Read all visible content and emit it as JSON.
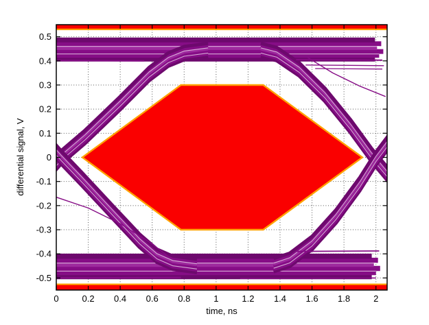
{
  "figure": {
    "background": "#ffffff"
  },
  "chart_data": {
    "type": "line",
    "subtype": "eye-diagram-with-mask",
    "title": "",
    "xlabel": "time, ns",
    "ylabel": "differential signal, V",
    "xlim": [
      0,
      2.07
    ],
    "ylim": [
      -0.55,
      0.55
    ],
    "xticks": [
      0,
      0.2,
      0.4,
      0.6,
      0.8,
      1,
      1.2,
      1.4,
      1.6,
      1.8,
      2
    ],
    "xtick_labels": [
      "0",
      "0.2",
      "0.4",
      "0.6",
      "0.8",
      "1",
      "1.2",
      "1.4",
      "1.6",
      "1.8",
      "2"
    ],
    "yticks": [
      0.5,
      0.4,
      0.3,
      0.2,
      0.1,
      0,
      -0.1,
      -0.2,
      -0.3,
      -0.4,
      -0.5
    ],
    "ytick_labels": [
      "0.5",
      "0.4",
      "0.3",
      "0.2",
      "0.1",
      "0",
      "-0.1",
      "-0.2",
      "-0.3",
      "-0.4",
      "-0.5"
    ],
    "grid": "dotted",
    "legend": "none",
    "colors": {
      "trace": "#860d86",
      "trace_dark": "#6d096d",
      "trace_light": "#9e2a9e",
      "mask_fill": "#fa0000",
      "mask_edge": "#ffa200",
      "grid": "#555555",
      "axis": "#000000",
      "background": "#ffffff"
    },
    "mask_polygon": [
      [
        0.163,
        0
      ],
      [
        0.78,
        0.3
      ],
      [
        1.295,
        0.3
      ],
      [
        1.915,
        0
      ],
      [
        1.295,
        -0.3
      ],
      [
        0.78,
        -0.3
      ]
    ],
    "violation_bars": {
      "top": {
        "v_min": 0.528,
        "v_max": 0.55
      },
      "bottom": {
        "v_min": -0.55,
        "v_max": -0.526
      }
    },
    "trace_bands": [
      {
        "name": "top-rail",
        "width": 0.08,
        "ragged_end": true,
        "texture": true,
        "points": [
          [
            0,
            0.447
          ],
          [
            2.02,
            0.447
          ]
        ]
      },
      {
        "name": "bottom-rail",
        "width": 0.085,
        "ragged_end": true,
        "texture": true,
        "points": [
          [
            0,
            -0.452
          ],
          [
            2.0,
            -0.452
          ]
        ]
      },
      {
        "name": "left-rising-edge",
        "width": 0.055,
        "texture": true,
        "points": [
          [
            -0.03,
            -0.045
          ],
          [
            0.03,
            0
          ],
          [
            0.18,
            0.085
          ],
          [
            0.4,
            0.225
          ],
          [
            0.58,
            0.345
          ],
          [
            0.7,
            0.405
          ],
          [
            0.8,
            0.432
          ],
          [
            0.95,
            0.445
          ]
        ]
      },
      {
        "name": "left-falling-edge",
        "width": 0.055,
        "texture": true,
        "points": [
          [
            -0.03,
            0.045
          ],
          [
            0.03,
            0
          ],
          [
            0.16,
            -0.09
          ],
          [
            0.35,
            -0.225
          ],
          [
            0.52,
            -0.345
          ],
          [
            0.63,
            -0.408
          ],
          [
            0.73,
            -0.437
          ],
          [
            0.88,
            -0.45
          ]
        ]
      },
      {
        "name": "right-falling-edge",
        "width": 0.055,
        "texture": true,
        "points": [
          [
            1.28,
            0.445
          ],
          [
            1.38,
            0.428
          ],
          [
            1.52,
            0.365
          ],
          [
            1.68,
            0.26
          ],
          [
            1.84,
            0.13
          ],
          [
            1.97,
            0.012
          ],
          [
            2.01,
            -0.02
          ],
          [
            2.08,
            -0.075
          ]
        ]
      },
      {
        "name": "right-rising-edge",
        "width": 0.055,
        "texture": true,
        "points": [
          [
            1.36,
            -0.447
          ],
          [
            1.46,
            -0.425
          ],
          [
            1.6,
            -0.355
          ],
          [
            1.75,
            -0.245
          ],
          [
            1.9,
            -0.11
          ],
          [
            2.0,
            -0.005
          ],
          [
            2.08,
            0.065
          ]
        ]
      }
    ],
    "stray_traces": [
      {
        "w": 1.4,
        "points": [
          [
            1.57,
            0.415
          ],
          [
            1.73,
            0.35
          ],
          [
            1.9,
            0.295
          ],
          [
            2.06,
            0.252
          ]
        ]
      },
      {
        "w": 1.4,
        "points": [
          [
            0,
            -0.165
          ],
          [
            0.2,
            -0.21
          ],
          [
            0.4,
            -0.275
          ],
          [
            0.58,
            -0.35
          ],
          [
            0.7,
            -0.41
          ]
        ]
      },
      {
        "w": 2.0,
        "points": [
          [
            0,
            0.402
          ],
          [
            0.55,
            0.4
          ]
        ]
      },
      {
        "w": 2.0,
        "points": [
          [
            1.5,
            0.405
          ],
          [
            2.04,
            0.403
          ]
        ]
      },
      {
        "w": 1.4,
        "points": [
          [
            1.56,
            0.383
          ],
          [
            2.05,
            0.38
          ]
        ]
      },
      {
        "w": 1.3,
        "points": [
          [
            1.62,
            0.368
          ],
          [
            2.04,
            0.366
          ]
        ]
      },
      {
        "w": 2.2,
        "points": [
          [
            0,
            -0.5
          ],
          [
            0.78,
            -0.498
          ]
        ]
      },
      {
        "w": 1.6,
        "points": [
          [
            1.15,
            -0.502
          ],
          [
            2.0,
            -0.5
          ]
        ]
      },
      {
        "w": 1.8,
        "points": [
          [
            1.5,
            -0.39
          ],
          [
            2.02,
            -0.388
          ]
        ]
      }
    ]
  }
}
